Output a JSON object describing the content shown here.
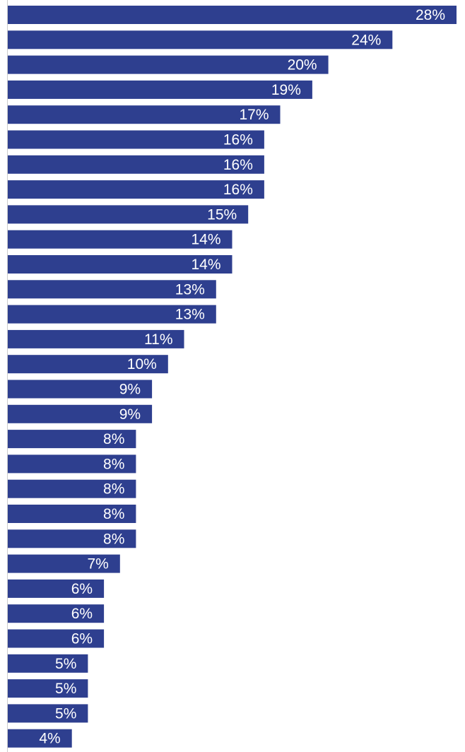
{
  "chart_data": {
    "type": "bar",
    "orientation": "horizontal",
    "title": "",
    "xlabel": "",
    "ylabel": "",
    "categories": [],
    "values": [
      28,
      24,
      20,
      19,
      17,
      16,
      16,
      16,
      15,
      14,
      14,
      13,
      13,
      11,
      10,
      9,
      9,
      8,
      8,
      8,
      8,
      8,
      7,
      6,
      6,
      6,
      5,
      5,
      5,
      4
    ],
    "labels": [
      "28%",
      "24%",
      "20%",
      "19%",
      "17%",
      "16%",
      "16%",
      "16%",
      "15%",
      "14%",
      "14%",
      "13%",
      "13%",
      "11%",
      "10%",
      "9%",
      "9%",
      "8%",
      "8%",
      "8%",
      "8%",
      "8%",
      "7%",
      "6%",
      "6%",
      "6%",
      "5%",
      "5%",
      "5%",
      "4%"
    ],
    "xlim": [
      0,
      28
    ],
    "grid": false,
    "legend": "none",
    "bar_color": "#2E3F8F",
    "label_color": "#FFFFFF",
    "axis_color": "#CCCCCC"
  }
}
